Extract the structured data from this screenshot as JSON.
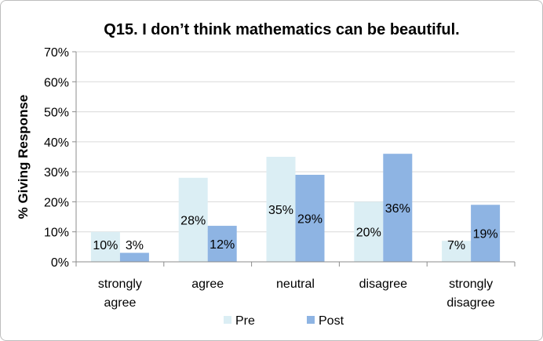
{
  "chart_data": {
    "type": "bar",
    "title": "Q15. I don’t think mathematics can be beautiful.",
    "ylabel": "% Giving Response",
    "xlabel": "",
    "ylim": [
      0,
      70
    ],
    "y_ticks": [
      "0%",
      "10%",
      "20%",
      "30%",
      "40%",
      "50%",
      "60%",
      "70%"
    ],
    "grid": true,
    "legend_position": "bottom",
    "categories": [
      [
        "strongly",
        "agree"
      ],
      [
        "agree"
      ],
      [
        "neutral"
      ],
      [
        "disagree"
      ],
      [
        "strongly",
        "disagree"
      ]
    ],
    "series": [
      {
        "name": "Pre",
        "color": "#dbeef4",
        "values": [
          10,
          28,
          35,
          20,
          7
        ],
        "labels": [
          "10%",
          "28%",
          "35%",
          "20%",
          "7%"
        ]
      },
      {
        "name": "Post",
        "color": "#8eb4e3",
        "values": [
          3,
          12,
          29,
          36,
          19
        ],
        "labels": [
          "3%",
          "12%",
          "29%",
          "36%",
          "19%"
        ]
      }
    ]
  }
}
